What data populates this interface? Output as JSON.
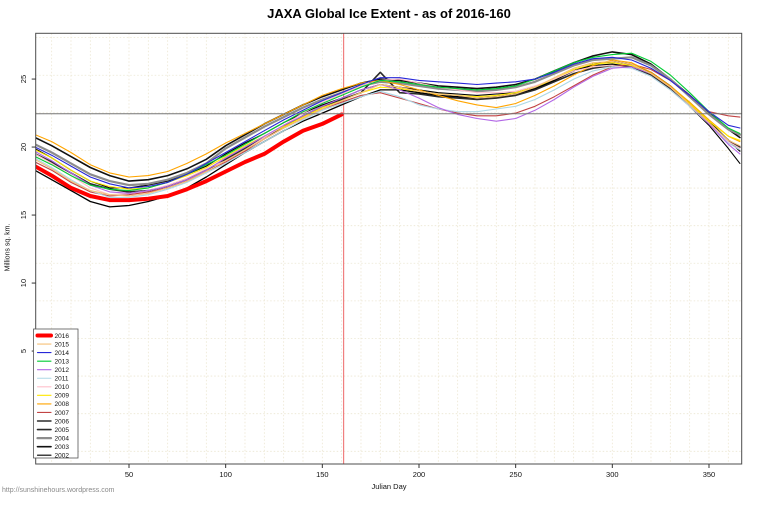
{
  "title": "JAXA Global Ice Extent - as of 2016-160",
  "footer": {
    "url": "http://sunshinehours.wordpress.com"
  },
  "chart_data": {
    "type": "line",
    "title": "JAXA Global Ice Extent - as of 2016-160",
    "xlabel": "Julian Day",
    "ylabel": "Millions sq. km.",
    "x_ticks": [
      50,
      100,
      150,
      200,
      250,
      300,
      350
    ],
    "y_ticks": [
      5,
      10,
      15,
      20,
      25
    ],
    "xlim": [
      1.7,
      367
    ],
    "ylim": [
      -3.3,
      28.4
    ],
    "grid": {
      "color": "#ECE6D2",
      "style": "dotted",
      "x_step_days": 10,
      "y_start": -2.37,
      "y_step_units": 2.765,
      "y_count": 12
    },
    "legend_position": "bottom-left",
    "reference_lines": {
      "vertical_red_day": 160,
      "vertical_red_color": "#F08080",
      "horizontal_gray_value": 22.45,
      "horizontal_gray_color": "#777777"
    },
    "sample_days": [
      0,
      10,
      20,
      30,
      40,
      50,
      60,
      70,
      80,
      90,
      100,
      110,
      120,
      130,
      140,
      150,
      160,
      170,
      180,
      190,
      200,
      210,
      220,
      230,
      240,
      250,
      260,
      270,
      280,
      290,
      300,
      310,
      320,
      330,
      340,
      350,
      360,
      366
    ],
    "series": [
      {
        "name": "2016",
        "color": "#FF0000",
        "lwd": 4,
        "days": [
          0,
          10,
          20,
          30,
          40,
          50,
          60,
          70,
          80,
          90,
          100,
          110,
          120,
          130,
          140,
          150,
          160
        ],
        "values": [
          18.7,
          17.9,
          17.0,
          16.4,
          16.1,
          16.1,
          16.2,
          16.4,
          16.9,
          17.5,
          18.2,
          18.9,
          19.5,
          20.4,
          21.2,
          21.7,
          22.4
        ]
      },
      {
        "name": "2015",
        "color": "#F6C178",
        "lwd": 1.1,
        "values": [
          19.2,
          18.4,
          17.5,
          16.8,
          16.5,
          16.4,
          16.6,
          17.0,
          17.5,
          18.2,
          19.0,
          19.8,
          20.6,
          21.4,
          22.1,
          22.8,
          23.4,
          24.0,
          24.6,
          24.4,
          24.1,
          23.9,
          23.8,
          23.6,
          23.7,
          23.9,
          24.4,
          25.1,
          25.8,
          26.2,
          26.3,
          26.1,
          25.4,
          24.4,
          23.1,
          21.8,
          20.5,
          20.1
        ]
      },
      {
        "name": "2014",
        "color": "#2727D8",
        "lwd": 1.1,
        "values": [
          20.1,
          19.4,
          18.6,
          17.8,
          17.3,
          17.0,
          17.1,
          17.4,
          18.0,
          18.8,
          19.6,
          20.4,
          21.2,
          22.0,
          22.7,
          23.4,
          24.0,
          24.6,
          25.1,
          25.1,
          24.9,
          24.8,
          24.7,
          24.6,
          24.7,
          24.8,
          25.0,
          25.5,
          26.1,
          26.5,
          26.6,
          26.4,
          25.8,
          24.9,
          23.8,
          22.6,
          21.6,
          21.4
        ]
      },
      {
        "name": "2013",
        "color": "#00CC33",
        "lwd": 1.1,
        "values": [
          19.4,
          18.7,
          17.9,
          17.2,
          16.9,
          16.8,
          17.0,
          17.4,
          18.0,
          18.7,
          19.4,
          20.2,
          21.0,
          21.8,
          22.6,
          23.2,
          23.8,
          24.4,
          24.9,
          24.8,
          24.6,
          24.4,
          24.3,
          24.2,
          24.3,
          24.5,
          25.0,
          25.6,
          26.2,
          26.6,
          26.8,
          26.9,
          26.3,
          25.3,
          24.0,
          22.6,
          21.4,
          21.0
        ]
      },
      {
        "name": "2012",
        "color": "#B267E6",
        "lwd": 1.1,
        "values": [
          19.8,
          19.0,
          18.1,
          17.2,
          16.7,
          16.6,
          16.8,
          17.1,
          17.6,
          18.3,
          19.2,
          20.0,
          20.8,
          21.6,
          22.3,
          23.0,
          23.6,
          24.2,
          24.6,
          24.2,
          23.6,
          22.9,
          22.4,
          22.1,
          21.9,
          22.1,
          22.7,
          23.5,
          24.4,
          25.2,
          25.8,
          25.9,
          25.4,
          24.4,
          23.1,
          21.7,
          20.2,
          19.5
        ]
      },
      {
        "name": "2011",
        "color": "#ADD8E6",
        "lwd": 1.1,
        "values": [
          19.3,
          18.5,
          17.6,
          16.8,
          16.3,
          16.3,
          16.5,
          16.9,
          17.4,
          18.1,
          18.8,
          19.6,
          20.4,
          21.2,
          22.0,
          22.7,
          23.2,
          23.7,
          24.1,
          23.7,
          23.1,
          22.8,
          22.6,
          22.6,
          22.8,
          23.0,
          23.5,
          24.2,
          25.0,
          25.6,
          25.9,
          25.8,
          25.2,
          24.2,
          23.0,
          21.7,
          20.3,
          19.8
        ]
      },
      {
        "name": "2010",
        "color": "#FFC0CB",
        "lwd": 1.1,
        "values": [
          19.6,
          18.8,
          17.9,
          17.0,
          16.5,
          16.6,
          16.8,
          17.2,
          17.7,
          18.4,
          19.0,
          19.8,
          20.7,
          21.6,
          22.5,
          23.3,
          23.9,
          24.5,
          24.9,
          25.0,
          24.7,
          24.4,
          24.2,
          24.0,
          24.0,
          24.1,
          24.5,
          25.0,
          25.6,
          25.9,
          26.0,
          25.8,
          25.2,
          24.2,
          23.0,
          21.7,
          20.4,
          19.9
        ]
      },
      {
        "name": "2009",
        "color": "#FFE800",
        "lwd": 1.1,
        "values": [
          19.9,
          19.2,
          18.3,
          17.5,
          17.1,
          16.9,
          17.0,
          17.4,
          17.9,
          18.5,
          19.3,
          20.1,
          20.8,
          21.5,
          22.2,
          22.9,
          23.4,
          24.0,
          24.4,
          24.3,
          24.1,
          23.9,
          23.8,
          23.7,
          23.8,
          24.0,
          24.4,
          25.0,
          25.7,
          26.1,
          26.2,
          26.0,
          25.4,
          24.4,
          23.2,
          21.9,
          20.8,
          20.5
        ]
      },
      {
        "name": "2008",
        "color": "#FFA500",
        "lwd": 1.1,
        "values": [
          21.0,
          20.4,
          19.6,
          18.7,
          18.1,
          17.8,
          17.9,
          18.2,
          18.8,
          19.5,
          20.3,
          21.0,
          21.7,
          22.4,
          23.1,
          23.8,
          24.3,
          24.7,
          24.9,
          24.6,
          24.2,
          23.8,
          23.4,
          23.1,
          22.9,
          23.2,
          23.8,
          24.5,
          25.3,
          26.0,
          26.4,
          26.2,
          25.5,
          24.5,
          23.3,
          22.0,
          20.8,
          20.4
        ]
      },
      {
        "name": "2007",
        "color": "#C24444",
        "lwd": 1.1,
        "values": [
          19.0,
          18.3,
          17.4,
          16.7,
          16.4,
          16.5,
          16.7,
          17.0,
          17.5,
          18.2,
          18.9,
          19.7,
          20.6,
          21.4,
          22.1,
          22.8,
          23.3,
          23.8,
          24.0,
          23.6,
          23.2,
          22.8,
          22.5,
          22.3,
          22.3,
          22.5,
          23.0,
          23.7,
          24.5,
          25.3,
          25.9,
          26.1,
          25.7,
          24.9,
          23.8,
          22.6,
          22.3,
          22.2
        ]
      },
      {
        "name": "2006",
        "color": "#000000",
        "lwd": 1.3,
        "values": [
          18.4,
          17.6,
          16.8,
          16.0,
          15.6,
          15.7,
          16.0,
          16.4,
          17.0,
          17.8,
          18.7,
          19.6,
          20.4,
          21.2,
          21.9,
          22.5,
          23.1,
          23.7,
          24.2,
          24.2,
          24.0,
          23.8,
          23.7,
          23.6,
          23.7,
          23.9,
          24.3,
          24.9,
          25.6,
          26.1,
          26.3,
          26.1,
          25.5,
          24.5,
          23.2,
          21.9,
          20.5,
          19.7
        ]
      },
      {
        "name": "2005",
        "color": "#2B2B2B",
        "lwd": 1.6,
        "values": [
          19.6,
          18.9,
          18.1,
          17.3,
          16.9,
          16.7,
          16.8,
          17.1,
          17.6,
          18.3,
          19.1,
          19.9,
          20.7,
          21.5,
          22.3,
          23.0,
          23.5,
          24.0,
          25.5,
          24.0,
          23.9,
          23.7,
          23.6,
          23.5,
          23.6,
          23.8,
          24.2,
          24.8,
          25.4,
          25.8,
          26.0,
          25.9,
          25.3,
          24.3,
          23.1,
          21.8,
          20.5,
          20.0
        ]
      },
      {
        "name": "2004",
        "color": "#8C8C8C",
        "lwd": 2.2,
        "values": [
          20.3,
          19.6,
          18.8,
          18.0,
          17.5,
          17.2,
          17.3,
          17.6,
          18.1,
          18.8,
          19.9,
          20.7,
          21.5,
          22.2,
          22.9,
          23.5,
          24.0,
          24.5,
          24.8,
          24.7,
          24.5,
          24.3,
          24.2,
          24.1,
          24.2,
          24.4,
          24.8,
          25.4,
          26.0,
          26.4,
          26.5,
          26.6,
          26.0,
          25.0,
          23.7,
          22.4,
          21.3,
          20.9
        ]
      },
      {
        "name": "2003",
        "color": "#111111",
        "lwd": 1.6,
        "values": [
          20.8,
          20.1,
          19.3,
          18.5,
          17.9,
          17.5,
          17.6,
          17.9,
          18.4,
          19.1,
          20.1,
          20.9,
          21.7,
          22.4,
          23.1,
          23.7,
          24.2,
          24.7,
          25.0,
          24.9,
          24.7,
          24.5,
          24.4,
          24.3,
          24.4,
          24.6,
          25.0,
          25.6,
          26.2,
          26.7,
          27.0,
          26.8,
          26.1,
          25.0,
          23.8,
          22.5,
          21.3,
          20.7
        ]
      },
      {
        "name": "2002",
        "color": "#000000",
        "lwd": 1.1,
        "values": [
          20.0,
          19.2,
          18.3,
          17.5,
          17.0,
          17.0,
          17.2,
          17.5,
          18.0,
          18.6,
          19.5,
          20.3,
          21.0,
          21.8,
          22.5,
          23.1,
          23.6,
          24.2,
          24.6,
          24.4,
          24.2,
          24.0,
          23.9,
          23.8,
          23.9,
          24.0,
          24.4,
          25.0,
          25.6,
          26.0,
          26.1,
          25.9,
          25.3,
          24.3,
          23.0,
          21.6,
          19.9,
          18.8
        ]
      }
    ]
  }
}
